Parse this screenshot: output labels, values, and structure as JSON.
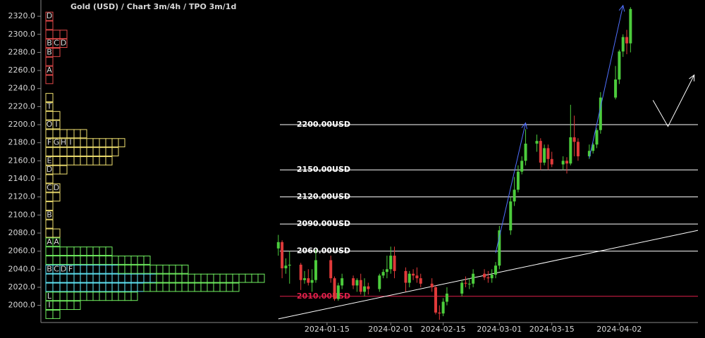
{
  "chart_data": {
    "type": "candlestick",
    "title": "Gold (USD) /  Chart 3m/4h / TPO 3m/1d",
    "xlim": [
      "2023-10-31",
      "2024-04-23"
    ],
    "ylim": [
      1981,
      2338
    ],
    "yticks": [
      {
        "value": 2000,
        "label": "2000.0"
      },
      {
        "value": 2020,
        "label": "2020.0"
      },
      {
        "value": 2040,
        "label": "2040.0"
      },
      {
        "value": 2060,
        "label": "2060.0"
      },
      {
        "value": 2080,
        "label": "2080.0"
      },
      {
        "value": 2100,
        "label": "2100.0"
      },
      {
        "value": 2120,
        "label": "2120.0"
      },
      {
        "value": 2140,
        "label": "2140.0"
      },
      {
        "value": 2160,
        "label": "2160.0"
      },
      {
        "value": 2180,
        "label": "2180.0"
      },
      {
        "value": 2200,
        "label": "2200.0"
      },
      {
        "value": 2220,
        "label": "2220.0"
      },
      {
        "value": 2240,
        "label": "2240.0"
      },
      {
        "value": 2260,
        "label": "2260.0"
      },
      {
        "value": 2280,
        "label": "2280.0"
      },
      {
        "value": 2300,
        "label": "2300.0"
      },
      {
        "value": 2320,
        "label": "2320.0"
      }
    ],
    "xticks": [
      "2024-01-15",
      "2024-02-01",
      "2024-02-15",
      "2024-03-01",
      "2024-03-15",
      "2024-04-02"
    ],
    "up_color": "#4ccc3c",
    "down_color": "#e03a3a",
    "x": [
      "2024-01-02",
      "2024-01-03",
      "2024-01-04",
      "2024-01-05",
      "2024-01-08",
      "2024-01-09",
      "2024-01-10",
      "2024-01-11",
      "2024-01-12",
      "2024-01-16",
      "2024-01-17",
      "2024-01-18",
      "2024-01-19",
      "2024-01-22",
      "2024-01-23",
      "2024-01-24",
      "2024-01-25",
      "2024-01-26",
      "2024-01-29",
      "2024-01-30",
      "2024-01-31",
      "2024-02-01",
      "2024-02-02",
      "2024-02-05",
      "2024-02-06",
      "2024-02-07",
      "2024-02-08",
      "2024-02-09",
      "2024-02-12",
      "2024-02-13",
      "2024-02-14",
      "2024-02-15",
      "2024-02-16",
      "2024-02-20",
      "2024-02-21",
      "2024-02-22",
      "2024-02-23",
      "2024-02-26",
      "2024-02-27",
      "2024-02-28",
      "2024-02-29",
      "2024-03-01",
      "2024-03-04",
      "2024-03-05",
      "2024-03-06",
      "2024-03-07",
      "2024-03-08",
      "2024-03-11",
      "2024-03-12",
      "2024-03-13",
      "2024-03-14",
      "2024-03-15",
      "2024-03-18",
      "2024-03-19",
      "2024-03-20",
      "2024-03-21",
      "2024-03-22",
      "2024-03-25",
      "2024-03-26",
      "2024-03-27",
      "2024-03-28",
      "2024-04-01",
      "2024-04-02",
      "2024-04-03",
      "2024-04-04",
      "2024-04-05"
    ],
    "open": [
      2063,
      2070,
      2041,
      2044,
      2045,
      2028,
      2030,
      2025,
      2028,
      2050,
      2030,
      2007,
      2022,
      2030,
      2022,
      2028,
      2015,
      2021,
      2018,
      2033,
      2037,
      2040,
      2055,
      2038,
      2025,
      2035,
      2033,
      2030,
      2024,
      2020,
      1992,
      1991,
      2004,
      2013,
      2025,
      2024,
      2024,
      2035,
      2031,
      2030,
      2034,
      2044,
      2083,
      2115,
      2128,
      2148,
      2160,
      2179,
      2182,
      2158,
      2174,
      2162,
      2156,
      2160,
      2157,
      2186,
      2181,
      2165,
      2171,
      2178,
      2194,
      2230,
      2250,
      2281,
      2297,
      2290
    ],
    "high": [
      2078,
      2072,
      2052,
      2060,
      2047,
      2038,
      2040,
      2040,
      2062,
      2055,
      2032,
      2025,
      2035,
      2033,
      2030,
      2035,
      2030,
      2025,
      2035,
      2040,
      2055,
      2065,
      2065,
      2042,
      2038,
      2040,
      2042,
      2035,
      2030,
      2022,
      2000,
      2008,
      2020,
      2028,
      2032,
      2030,
      2040,
      2040,
      2038,
      2040,
      2048,
      2088,
      2120,
      2142,
      2155,
      2165,
      2195,
      2189,
      2185,
      2178,
      2178,
      2170,
      2165,
      2164,
      2222,
      2210,
      2185,
      2178,
      2180,
      2196,
      2236,
      2265,
      2283,
      2300,
      2305,
      2330
    ],
    "low": [
      2055,
      2030,
      2035,
      2024,
      2017,
      2024,
      2022,
      2015,
      2025,
      2025,
      2005,
      2005,
      2018,
      2018,
      2015,
      2012,
      2010,
      2012,
      2015,
      2030,
      2030,
      2035,
      2030,
      2015,
      2020,
      2028,
      2025,
      2020,
      2015,
      1990,
      1984,
      1988,
      2000,
      2010,
      2020,
      2018,
      2020,
      2028,
      2025,
      2025,
      2030,
      2040,
      2078,
      2110,
      2125,
      2145,
      2155,
      2170,
      2150,
      2155,
      2150,
      2153,
      2150,
      2146,
      2155,
      2165,
      2160,
      2162,
      2168,
      2174,
      2190,
      2228,
      2245,
      2275,
      2278,
      2280
    ],
    "close": [
      2070,
      2041,
      2044,
      2045,
      2028,
      2030,
      2025,
      2028,
      2050,
      2030,
      2007,
      2022,
      2030,
      2022,
      2028,
      2015,
      2021,
      2018,
      2033,
      2037,
      2040,
      2055,
      2038,
      2025,
      2035,
      2033,
      2030,
      2024,
      2020,
      1992,
      1991,
      2004,
      2013,
      2025,
      2024,
      2024,
      2035,
      2031,
      2030,
      2034,
      2044,
      2083,
      2115,
      2128,
      2148,
      2160,
      2179,
      2182,
      2158,
      2174,
      2162,
      2156,
      2160,
      2157,
      2186,
      2181,
      2165,
      2171,
      2178,
      2194,
      2230,
      2250,
      2281,
      2297,
      2290,
      2328
    ],
    "levels": [
      {
        "value": 2200,
        "label": "2200.00USD",
        "color": "#ffffff"
      },
      {
        "value": 2150,
        "label": "2150.00USD",
        "color": "#ffffff"
      },
      {
        "value": 2120,
        "label": "2120.00USD",
        "color": "#ffffff"
      },
      {
        "value": 2090,
        "label": "2090.00USD",
        "color": "#ffffff"
      },
      {
        "value": 2060,
        "label": "2060.00USD",
        "color": "#ffffff"
      },
      {
        "value": 2010,
        "label": "2010.00USD",
        "color": "#e0204a"
      }
    ],
    "trendline": {
      "color": "#ffffff",
      "points": [
        [
          "2024-01-02",
          1985
        ],
        [
          "2024-04-23",
          2083
        ]
      ]
    },
    "arrows": [
      {
        "color": "#5070ff",
        "points": [
          [
            "2024-02-29",
            2058
          ],
          [
            "2024-03-08",
            2202
          ]
        ]
      },
      {
        "color": "#5070ff",
        "points": [
          [
            "2024-03-25",
            2163
          ],
          [
            "2024-04-03",
            2332
          ]
        ]
      },
      {
        "color": "#ffffff",
        "points": [
          [
            "2024-04-11",
            2227
          ],
          [
            "2024-04-15",
            2198
          ],
          [
            "2024-04-22",
            2255
          ]
        ]
      }
    ],
    "profiles": [
      {
        "color": "#e04848",
        "rows": [
          {
            "price": 2320,
            "count": 1,
            "letters": [
              "D"
            ]
          },
          {
            "price": 2310,
            "count": 1
          },
          {
            "price": 2300,
            "count": 3
          },
          {
            "price": 2290,
            "count": 3,
            "letters": [
              "B",
              "C",
              "D"
            ]
          },
          {
            "price": 2280,
            "count": 2,
            "letters": [
              "B"
            ]
          },
          {
            "price": 2270,
            "count": 1
          },
          {
            "price": 2260,
            "count": 1,
            "letters": [
              "A"
            ]
          },
          {
            "price": 2250,
            "count": 1
          }
        ]
      },
      {
        "color": "#f0e070",
        "rows": [
          {
            "price": 2230,
            "count": 1
          },
          {
            "price": 2220,
            "count": 1,
            "letters": [
              "T"
            ]
          },
          {
            "price": 2210,
            "count": 2
          },
          {
            "price": 2200,
            "count": 2,
            "letters": [
              "O",
              "I"
            ]
          },
          {
            "price": 2190,
            "count": 6
          },
          {
            "price": 2180,
            "count": 12,
            "letters": [
              "F",
              "G",
              "H",
              "I"
            ]
          },
          {
            "price": 2170,
            "count": 11
          },
          {
            "price": 2160,
            "count": 10,
            "letters": [
              "E"
            ]
          },
          {
            "price": 2150,
            "count": 3,
            "letters": [
              "D"
            ]
          },
          {
            "price": 2140,
            "count": 1
          },
          {
            "price": 2130,
            "count": 2,
            "letters": [
              "C",
              "D"
            ]
          },
          {
            "price": 2120,
            "count": 2
          },
          {
            "price": 2110,
            "count": 1
          },
          {
            "price": 2100,
            "count": 1,
            "letters": [
              "B"
            ]
          },
          {
            "price": 2090,
            "count": 1
          },
          {
            "price": 2080,
            "count": 2
          }
        ]
      },
      {
        "color": "#70f060",
        "value_area_color": "#60e8f8",
        "value_area": [
          2020,
          2040
        ],
        "rows": [
          {
            "price": 2070,
            "count": 2,
            "letters": [
              "A",
              "A"
            ]
          },
          {
            "price": 2060,
            "count": 10
          },
          {
            "price": 2050,
            "count": 16
          },
          {
            "price": 2040,
            "count": 22,
            "letters": [
              "B",
              "C",
              "D",
              "F"
            ]
          },
          {
            "price": 2030,
            "count": 34
          },
          {
            "price": 2020,
            "count": 30
          },
          {
            "price": 2010,
            "count": 14,
            "letters": [
              "L"
            ]
          },
          {
            "price": 2000,
            "count": 5,
            "letters": [
              "I"
            ]
          },
          {
            "price": 1990,
            "count": 2
          }
        ]
      }
    ]
  }
}
